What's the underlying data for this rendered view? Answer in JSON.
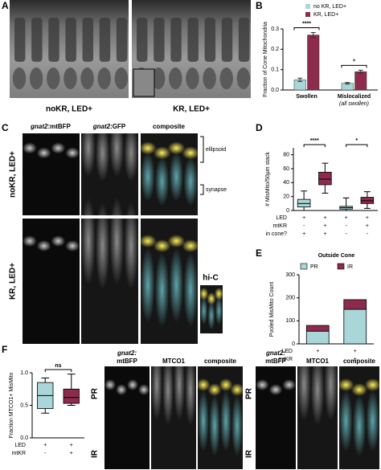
{
  "panel_labels": [
    "A",
    "B",
    "C",
    "D",
    "E",
    "F"
  ],
  "panel_a": {
    "captions": [
      "noKR, LED+",
      "KR, LED+"
    ]
  },
  "panel_c": {
    "headers": [
      {
        "italic": "gnat2",
        "text": ":mtBFP"
      },
      {
        "italic": "gnat2",
        "text": ":GFP"
      },
      {
        "text": "composite"
      }
    ],
    "rows": [
      "noKR, LED+",
      "KR, LED+"
    ],
    "annotations": [
      "ellipsoid",
      "synapse",
      "hi-C"
    ]
  },
  "panel_f": {
    "images": [
      {
        "headers": [
          {
            "italic": "gnat2:",
            "text": "mtBFP"
          },
          {
            "text": "MTCO1"
          },
          {
            "text": "composite"
          }
        ],
        "regions": [
          "PR",
          "IR"
        ]
      },
      {
        "headers": [
          {
            "italic": "gnat2:",
            "text": "mtBFP"
          },
          {
            "text": "MTCO1"
          },
          {
            "text": "composite"
          }
        ],
        "regions": [
          "PR",
          "IR"
        ]
      }
    ]
  },
  "chart_data": [
    {
      "type": "bar",
      "ylabel": "Fraction of Cone Mitochondria",
      "categories": [
        "Swollen",
        "Mislocalized"
      ],
      "category_notes": [
        null,
        "(all swollen)"
      ],
      "series": [
        {
          "name": "no KR, LED+",
          "color": "#a9d6d8",
          "values": [
            0.05,
            0.033
          ],
          "errors": [
            0.008,
            0.004
          ]
        },
        {
          "name": "KR, LED+",
          "color": "#8c2b4c",
          "values": [
            0.27,
            0.09
          ],
          "errors": [
            0.012,
            0.007
          ]
        }
      ],
      "ylim": [
        0,
        0.3
      ],
      "yticks": [
        {
          "value": 0,
          "label": "0.0"
        },
        0.1,
        0.2,
        0.3
      ],
      "annotations": [
        "****",
        "*"
      ],
      "legend": "top-right"
    },
    {
      "type": "box",
      "ylabel": "# MisMito/50µm stack",
      "boxes": [
        {
          "color": "#a9d6d8",
          "min": 0,
          "q1": 5,
          "median": 10,
          "q3": 16,
          "max": 28
        },
        {
          "color": "#8c2b4c",
          "min": 25,
          "q1": 37,
          "median": 45,
          "q3": 55,
          "max": 68
        },
        {
          "color": "#a9d6d8",
          "min": 0,
          "q1": 2,
          "median": 4,
          "q3": 6,
          "max": 18
        },
        {
          "color": "#8c2b4c",
          "min": 3,
          "q1": 10,
          "median": 14,
          "q3": 19,
          "max": 27
        }
      ],
      "ylim": [
        0,
        90
      ],
      "yticks": [
        0,
        20,
        40,
        60,
        80
      ],
      "annotations": [
        "****",
        "*"
      ],
      "conditions": {
        "labels": [
          "LED",
          "mtKR",
          "in cone?"
        ],
        "values": [
          [
            "+",
            "+",
            "+",
            "+"
          ],
          [
            "-",
            "+",
            "-",
            "+"
          ],
          [
            "+",
            "+",
            "-",
            "-"
          ]
        ]
      }
    },
    {
      "type": "stacked_bar",
      "title": "Outside Cone",
      "ylabel": "Pooled MisMito Count",
      "series": [
        {
          "name": "PR",
          "color": "#a9d6d8",
          "values": [
            55,
            150
          ]
        },
        {
          "name": "IR",
          "color": "#8c2b4c",
          "values": [
            25,
            42
          ]
        }
      ],
      "ylim": [
        0,
        300
      ],
      "yticks": [
        0,
        100,
        200,
        300
      ],
      "legend": "top",
      "conditions": {
        "labels": [
          "LED",
          "mtKR"
        ],
        "values": [
          [
            "+",
            "+"
          ],
          [
            "-",
            "+"
          ]
        ]
      }
    },
    {
      "type": "box",
      "ylabel": "Fraction MTCO1+ MisMito",
      "boxes": [
        {
          "color": "#a9d6d8",
          "min": 0.38,
          "q1": 0.45,
          "median": 0.65,
          "q3": 0.85,
          "max": 0.92
        },
        {
          "color": "#8c2b4c",
          "min": 0.5,
          "q1": 0.53,
          "median": 0.62,
          "q3": 0.75,
          "max": 0.98
        }
      ],
      "ylim": [
        0,
        1
      ],
      "yticks": [
        {
          "value": 0,
          "label": "0.0"
        },
        0.5,
        {
          "value": 1,
          "label": "1.0"
        }
      ],
      "annotations": [
        "ns"
      ],
      "conditions": {
        "labels": [
          "LED",
          "mtKR"
        ],
        "values": [
          [
            "+",
            "+"
          ],
          [
            "-",
            "+"
          ]
        ]
      }
    }
  ]
}
